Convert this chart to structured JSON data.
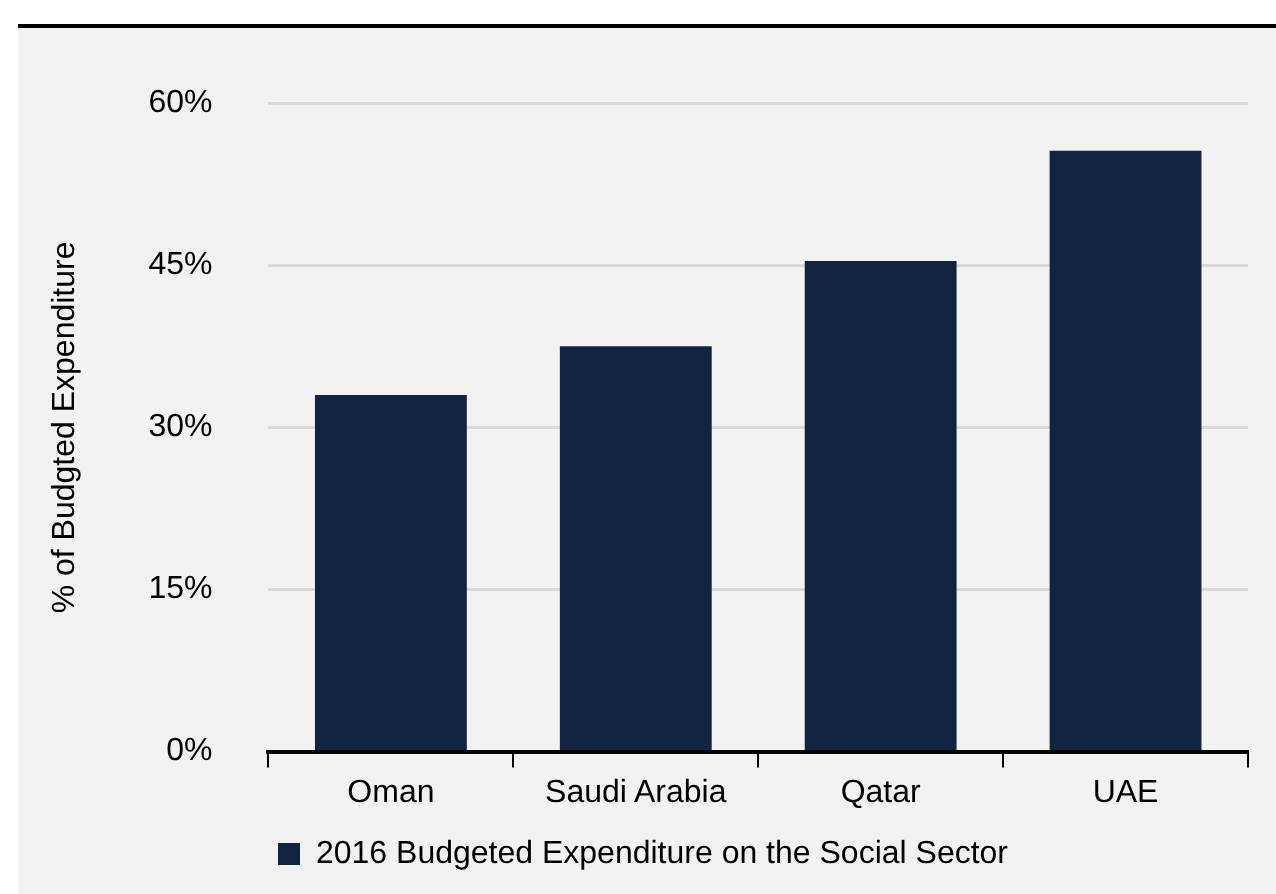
{
  "chart_data": {
    "type": "bar",
    "ylabel": "% of Budgted Expenditure",
    "categories": [
      "Oman",
      "Saudi Arabia",
      "Qatar",
      "UAE"
    ],
    "series": [
      {
        "name": "2016 Budgeted Expenditure on the Social Sector",
        "color": "#12233f",
        "values": [
          33,
          37.5,
          45.4,
          55.6
        ]
      }
    ],
    "ylim": [
      0,
      60
    ],
    "yticks": [
      {
        "value": 0,
        "label": "0%"
      },
      {
        "value": 15,
        "label": "15%"
      },
      {
        "value": 30,
        "label": "30%"
      },
      {
        "value": 45,
        "label": "45%"
      },
      {
        "value": 60,
        "label": "60%"
      }
    ],
    "grid": "y",
    "legend": "bottom"
  }
}
